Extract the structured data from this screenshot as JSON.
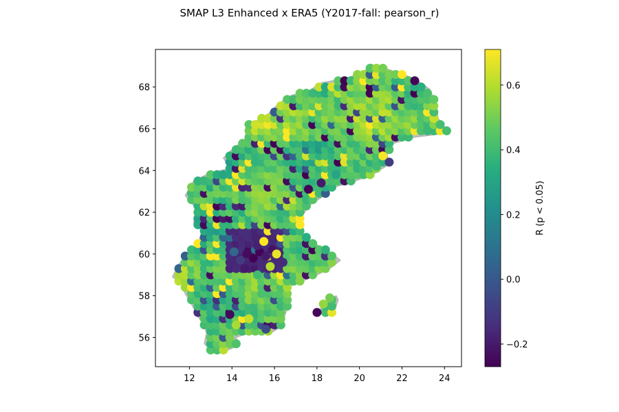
{
  "chart_data": {
    "type": "scatter",
    "title": "SMAP L3 Enhanced x ERA5 (Y2017-fall: pearson_r)",
    "xlabel": "",
    "ylabel": "",
    "xlim": [
      10.4,
      24.8
    ],
    "ylim": [
      54.6,
      69.8
    ],
    "x_ticks": [
      12,
      14,
      16,
      18,
      20,
      22,
      24
    ],
    "y_ticks": [
      56,
      58,
      60,
      62,
      64,
      66,
      68
    ],
    "x_tick_labels": [
      "12",
      "14",
      "16",
      "18",
      "20",
      "22",
      "24"
    ],
    "y_tick_labels": [
      "56",
      "58",
      "60",
      "62",
      "64",
      "66",
      "68"
    ],
    "grid": false,
    "colormap": "viridis",
    "colorbar": {
      "label": "R (p < 0.05)",
      "range": [
        -0.27,
        0.71
      ],
      "ticks": [
        -0.2,
        0.0,
        0.2,
        0.4,
        0.6
      ],
      "tick_labels": [
        "−0.2",
        "0.0",
        "0.2",
        "0.4",
        "0.6"
      ]
    },
    "background_color": "#c0c0c0",
    "land_outline": [
      [
        11.2,
        58.9
      ],
      [
        11.6,
        58.6
      ],
      [
        11.8,
        58.1
      ],
      [
        12.1,
        57.6
      ],
      [
        12.4,
        57.0
      ],
      [
        12.7,
        56.6
      ],
      [
        12.8,
        56.2
      ],
      [
        12.7,
        55.7
      ],
      [
        13.0,
        55.4
      ],
      [
        13.8,
        55.4
      ],
      [
        14.3,
        55.6
      ],
      [
        14.2,
        56.0
      ],
      [
        14.7,
        56.2
      ],
      [
        15.8,
        56.2
      ],
      [
        16.3,
        56.5
      ],
      [
        16.5,
        57.1
      ],
      [
        16.7,
        57.6
      ],
      [
        16.6,
        58.0
      ],
      [
        16.8,
        58.5
      ],
      [
        17.3,
        58.7
      ],
      [
        18.0,
        59.0
      ],
      [
        18.6,
        59.3
      ],
      [
        19.1,
        59.7
      ],
      [
        18.6,
        60.1
      ],
      [
        17.7,
        60.6
      ],
      [
        17.3,
        61.0
      ],
      [
        17.3,
        61.8
      ],
      [
        17.6,
        62.3
      ],
      [
        18.2,
        62.7
      ],
      [
        18.8,
        63.2
      ],
      [
        19.8,
        63.5
      ],
      [
        20.6,
        63.8
      ],
      [
        21.4,
        64.3
      ],
      [
        21.3,
        64.8
      ],
      [
        21.6,
        65.3
      ],
      [
        22.6,
        65.6
      ],
      [
        24.2,
        65.8
      ],
      [
        23.7,
        66.5
      ],
      [
        23.6,
        67.2
      ],
      [
        23.3,
        67.9
      ],
      [
        22.6,
        68.4
      ],
      [
        21.2,
        68.9
      ],
      [
        20.5,
        69.1
      ],
      [
        20.2,
        68.7
      ],
      [
        19.3,
        68.4
      ],
      [
        18.2,
        68.2
      ],
      [
        17.6,
        67.8
      ],
      [
        16.8,
        67.6
      ],
      [
        16.2,
        67.2
      ],
      [
        15.6,
        66.6
      ],
      [
        14.8,
        66.2
      ],
      [
        14.6,
        65.5
      ],
      [
        14.0,
        65.0
      ],
      [
        13.6,
        64.6
      ],
      [
        13.9,
        64.1
      ],
      [
        13.0,
        63.9
      ],
      [
        12.2,
        63.5
      ],
      [
        11.8,
        62.8
      ],
      [
        12.3,
        62.2
      ],
      [
        12.2,
        61.5
      ],
      [
        12.6,
        61.1
      ],
      [
        12.4,
        60.5
      ],
      [
        11.8,
        59.9
      ],
      [
        11.5,
        59.5
      ],
      [
        11.2,
        58.9
      ]
    ],
    "land_outline_2": [
      [
        18.1,
        57.3
      ],
      [
        18.4,
        57.0
      ],
      [
        18.8,
        57.2
      ],
      [
        19.0,
        57.8
      ],
      [
        18.9,
        58.0
      ],
      [
        18.5,
        57.8
      ],
      [
        18.1,
        57.3
      ]
    ],
    "grid_spacing": 0.3,
    "points": [
      [
        15.0,
        59.8,
        -0.27
      ],
      [
        15.3,
        60.1,
        -0.26
      ],
      [
        15.6,
        59.9,
        -0.2
      ],
      [
        15.9,
        60.2,
        -0.22
      ],
      [
        14.7,
        60.0,
        -0.24
      ],
      [
        15.2,
        60.4,
        -0.18
      ],
      [
        15.5,
        60.6,
        0.71
      ],
      [
        16.1,
        60.0,
        0.68
      ],
      [
        14.4,
        59.7,
        -0.1
      ],
      [
        14.1,
        60.1,
        0.05
      ],
      [
        16.4,
        59.6,
        -0.15
      ],
      [
        15.8,
        59.4,
        0.6
      ],
      [
        14.6,
        59.3,
        -0.2
      ],
      [
        15.2,
        59.0,
        0.4
      ],
      [
        13.9,
        57.1,
        -0.25
      ],
      [
        14.8,
        56.9,
        0.62
      ],
      [
        14.2,
        56.6,
        0.58
      ],
      [
        15.6,
        56.4,
        -0.05
      ],
      [
        18.3,
        57.6,
        0.55
      ],
      [
        18.6,
        57.9,
        0.5
      ],
      [
        18.0,
        57.2,
        -0.25
      ],
      [
        17.6,
        63.1,
        -0.26
      ],
      [
        18.2,
        63.4,
        -0.2
      ],
      [
        18.9,
        63.8,
        0.3
      ],
      [
        21.1,
        64.7,
        0.7
      ],
      [
        21.4,
        64.4,
        -0.1
      ],
      [
        20.8,
        64.2,
        0.4
      ]
    ]
  }
}
